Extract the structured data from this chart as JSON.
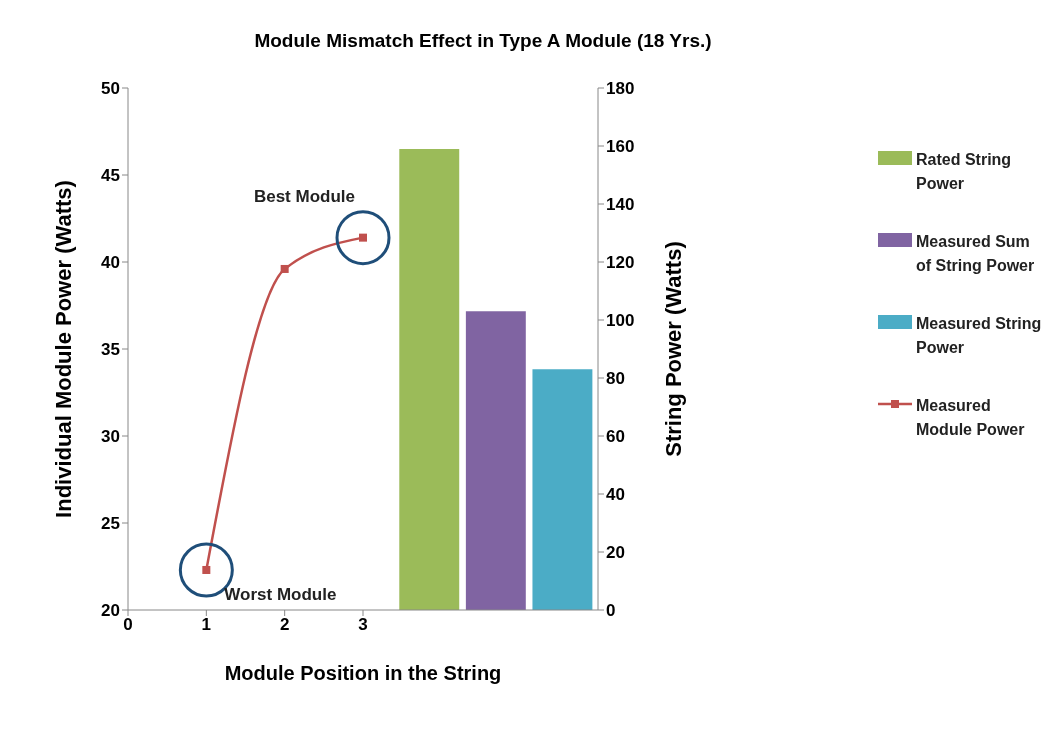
{
  "chart_data": {
    "type": "bar",
    "title": "Module Mismatch Effect in Type A Module (18 Yrs.)",
    "xlabel": "Module Position in the String",
    "ylabel": "Individual Module  Power (Watts)",
    "y2label": "String Power (Watts)",
    "xlim": [
      0,
      6
    ],
    "xticks": [
      0,
      1,
      2,
      3
    ],
    "ylim": [
      20,
      50
    ],
    "yticks": [
      20,
      25,
      30,
      35,
      40,
      45,
      50
    ],
    "y2lim": [
      0,
      180
    ],
    "y2ticks": [
      0,
      20,
      40,
      60,
      80,
      100,
      120,
      140,
      160,
      180
    ],
    "series": [
      {
        "name": "Rated String Power",
        "axis": "y2",
        "color": "#9bbb59",
        "x": [
          3.85
        ],
        "values": [
          159
        ]
      },
      {
        "name": "Measured Sum of String Power",
        "axis": "y2",
        "color": "#8064a2",
        "x": [
          4.7
        ],
        "values": [
          103
        ]
      },
      {
        "name": "Measured String Power",
        "axis": "y2",
        "color": "#4bacc6",
        "x": [
          5.55
        ],
        "values": [
          83
        ]
      },
      {
        "name": "Measured Module Power",
        "type": "line",
        "color": "#c0504d",
        "x": [
          1,
          2,
          3
        ],
        "values": [
          22.3,
          39.6,
          41.4
        ]
      }
    ],
    "marker": "square",
    "grid": false,
    "legend": "right",
    "annotations": [
      {
        "text": "Best Module",
        "x": 3,
        "y": 41.4
      },
      {
        "text": "Worst Module",
        "x": 1,
        "y": 22.3
      }
    ]
  }
}
